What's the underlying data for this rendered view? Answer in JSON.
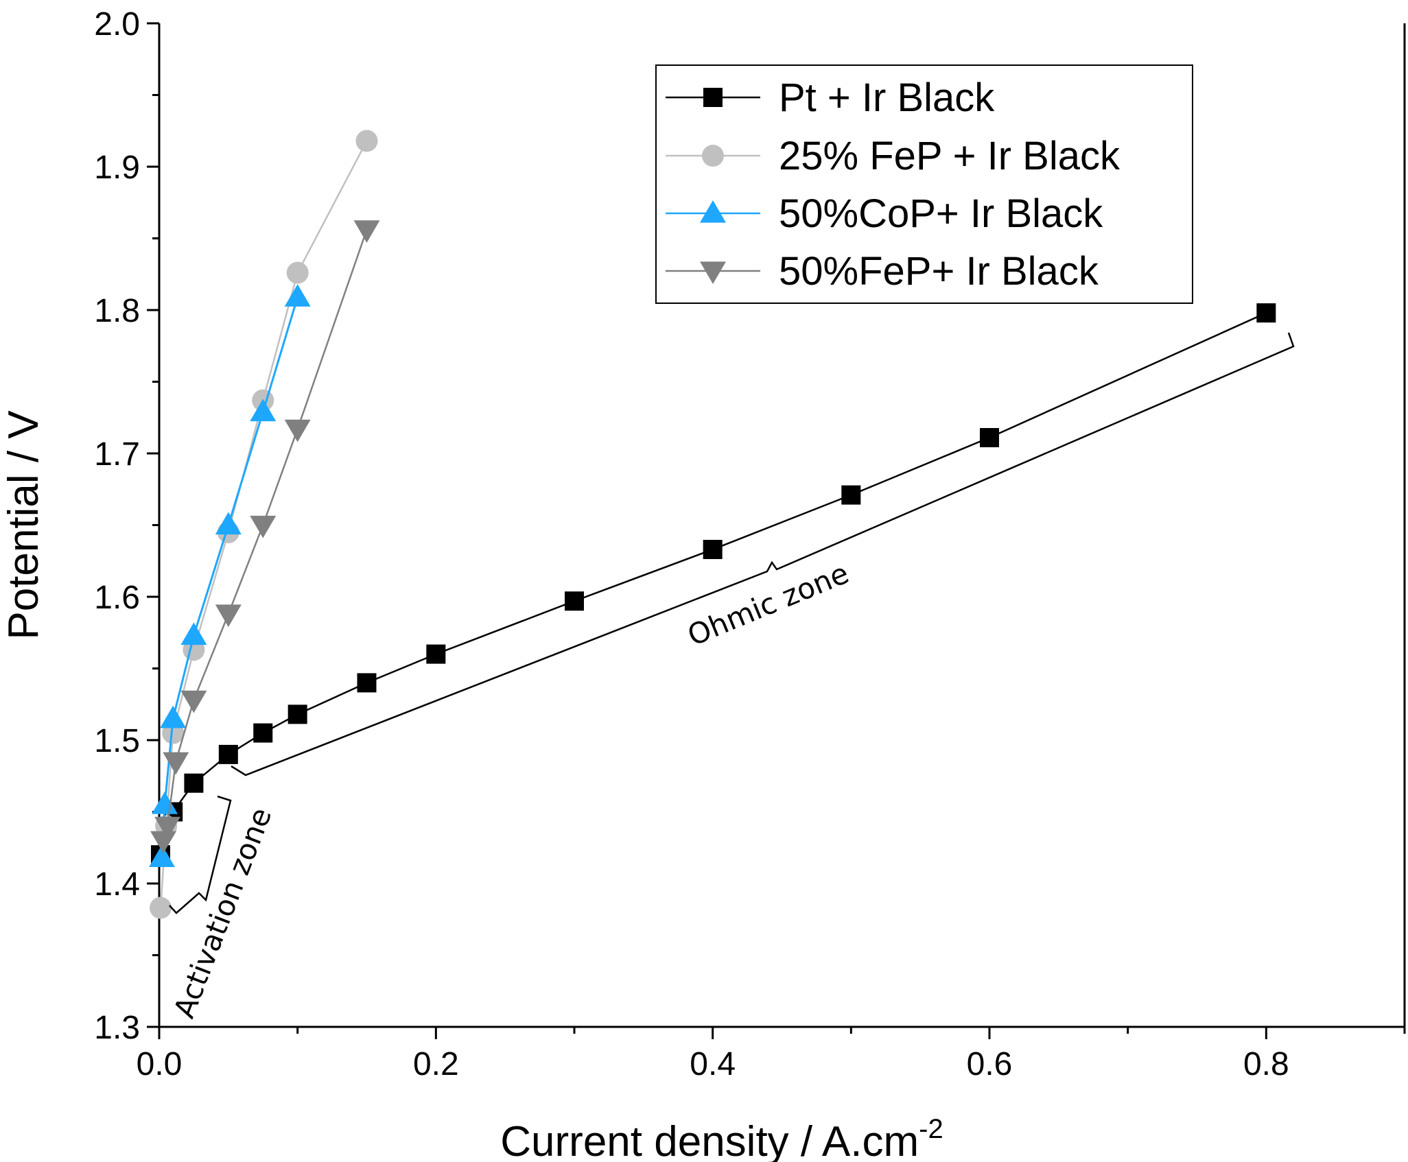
{
  "chart_data": {
    "type": "line",
    "title": "",
    "xlabel": "Current density / A.cm",
    "xlabel_sup": "-2",
    "ylabel": "Potential / V",
    "xlim": [
      0,
      0.9
    ],
    "ylim": [
      1.3,
      2.0
    ],
    "x_ticks": [
      "0.0",
      "0.2",
      "0.4",
      "0.6",
      "0.8"
    ],
    "y_ticks": [
      "1.3",
      "1.4",
      "1.5",
      "1.6",
      "1.7",
      "1.8",
      "1.9",
      "2.0"
    ],
    "grid": false,
    "legend_position": "top-right",
    "series": [
      {
        "name": "Pt + Ir Black",
        "color": "#000000",
        "marker": "square",
        "x": [
          0.001,
          0.01,
          0.025,
          0.05,
          0.075,
          0.1,
          0.15,
          0.2,
          0.3,
          0.4,
          0.5,
          0.6,
          0.8
        ],
        "y": [
          1.42,
          1.45,
          1.47,
          1.49,
          1.505,
          1.518,
          1.54,
          1.56,
          1.597,
          1.633,
          1.671,
          1.711,
          1.798
        ]
      },
      {
        "name": "25% FeP + Ir Black",
        "color": "#c0c0c0",
        "marker": "circle",
        "x": [
          0.001,
          0.005,
          0.01,
          0.025,
          0.05,
          0.075,
          0.1,
          0.15
        ],
        "y": [
          1.383,
          1.44,
          1.505,
          1.563,
          1.645,
          1.737,
          1.826,
          1.918
        ]
      },
      {
        "name": "50%CoP+ Ir Black",
        "color": "#1ea7ff",
        "marker": "triangle-up",
        "x": [
          0.002,
          0.004,
          0.01,
          0.025,
          0.05,
          0.075,
          0.1
        ],
        "y": [
          1.418,
          1.455,
          1.515,
          1.573,
          1.65,
          1.729,
          1.809
        ]
      },
      {
        "name": "50%FeP+ Ir Black",
        "color": "#808080",
        "marker": "triangle-down",
        "x": [
          0.003,
          0.006,
          0.012,
          0.025,
          0.05,
          0.075,
          0.1,
          0.15
        ],
        "y": [
          1.43,
          1.44,
          1.485,
          1.528,
          1.588,
          1.65,
          1.717,
          1.856
        ]
      }
    ],
    "annotations": [
      {
        "text": "Activation zone"
      },
      {
        "text": "Ohmic zone"
      }
    ]
  }
}
